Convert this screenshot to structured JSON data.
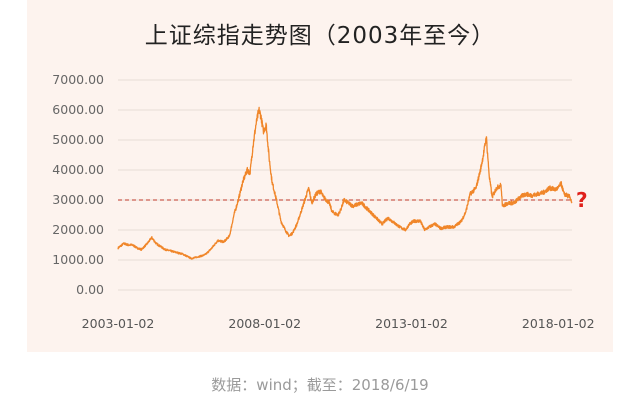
{
  "chart_data": {
    "type": "line",
    "title": "上证综指走势图（2003年至今）",
    "footer": "数据：wind；截至：2018/6/19",
    "yticks": [
      "0.00",
      "1000.00",
      "2000.00",
      "3000.00",
      "4000.00",
      "5000.00",
      "6000.00",
      "7000.00"
    ],
    "ylim": [
      0,
      7000
    ],
    "xticks": [
      {
        "label": "2003-01-02",
        "x": 2003.0
      },
      {
        "label": "2008-01-02",
        "x": 2008.0
      },
      {
        "label": "2013-01-02",
        "x": 2013.0
      },
      {
        "label": "2018-01-02",
        "x": 2018.0
      }
    ],
    "xlim": [
      2003.0,
      2018.47
    ],
    "reference_line": {
      "y": 3000,
      "style": "dashed",
      "color": "#c0392b"
    },
    "annotation": "?",
    "line_color": "#f0862a",
    "grid": "horizontal",
    "series": [
      {
        "x": [
          2003.0,
          2003.2,
          2003.35,
          2003.5,
          2003.65,
          2003.8,
          2004.0,
          2004.15,
          2004.3,
          2004.45,
          2004.6,
          2004.8,
          2005.0,
          2005.2,
          2005.4,
          2005.5,
          2005.7,
          2005.9,
          2006.0,
          2006.2,
          2006.4,
          2006.6,
          2006.8,
          2006.95,
          2007.1,
          2007.25,
          2007.4,
          2007.5,
          2007.6,
          2007.7,
          2007.8,
          2007.87,
          2007.95,
          2008.05,
          2008.15,
          2008.25,
          2008.4,
          2008.55,
          2008.7,
          2008.83,
          2008.95,
          2009.1,
          2009.3,
          2009.5,
          2009.6,
          2009.75,
          2009.9,
          2010.0,
          2010.2,
          2010.3,
          2010.5,
          2010.6,
          2010.7,
          2010.85,
          2011.0,
          2011.3,
          2011.5,
          2011.7,
          2011.9,
          2012.0,
          2012.2,
          2012.4,
          2012.6,
          2012.8,
          2012.93,
          2013.1,
          2013.3,
          2013.45,
          2013.6,
          2013.8,
          2014.0,
          2014.2,
          2014.45,
          2014.7,
          2014.85,
          2015.0,
          2015.2,
          2015.35,
          2015.45,
          2015.55,
          2015.65,
          2015.75,
          2015.9,
          2016.05,
          2016.1,
          2016.3,
          2016.5,
          2016.7,
          2016.9,
          2017.1,
          2017.3,
          2017.5,
          2017.7,
          2017.9,
          2018.0,
          2018.1,
          2018.2,
          2018.3,
          2018.4,
          2018.47
        ],
        "y": [
          1400,
          1550,
          1500,
          1500,
          1400,
          1350,
          1550,
          1750,
          1550,
          1450,
          1350,
          1300,
          1250,
          1200,
          1100,
          1050,
          1100,
          1150,
          1200,
          1400,
          1650,
          1600,
          1800,
          2500,
          3000,
          3600,
          4000,
          3900,
          4800,
          5500,
          6000,
          5800,
          5300,
          5500,
          4400,
          3600,
          3000,
          2300,
          2000,
          1800,
          1900,
          2200,
          2800,
          3400,
          2900,
          3200,
          3300,
          3100,
          2900,
          2600,
          2500,
          2700,
          3000,
          2900,
          2800,
          2900,
          2700,
          2500,
          2300,
          2200,
          2400,
          2250,
          2100,
          2000,
          2200,
          2300,
          2300,
          2000,
          2100,
          2200,
          2050,
          2100,
          2100,
          2300,
          2600,
          3200,
          3400,
          4000,
          4500,
          5100,
          3800,
          3100,
          3400,
          3500,
          2800,
          2900,
          2900,
          3100,
          3200,
          3150,
          3200,
          3250,
          3400,
          3350,
          3400,
          3550,
          3200,
          3150,
          3100,
          2900
        ]
      }
    ]
  }
}
